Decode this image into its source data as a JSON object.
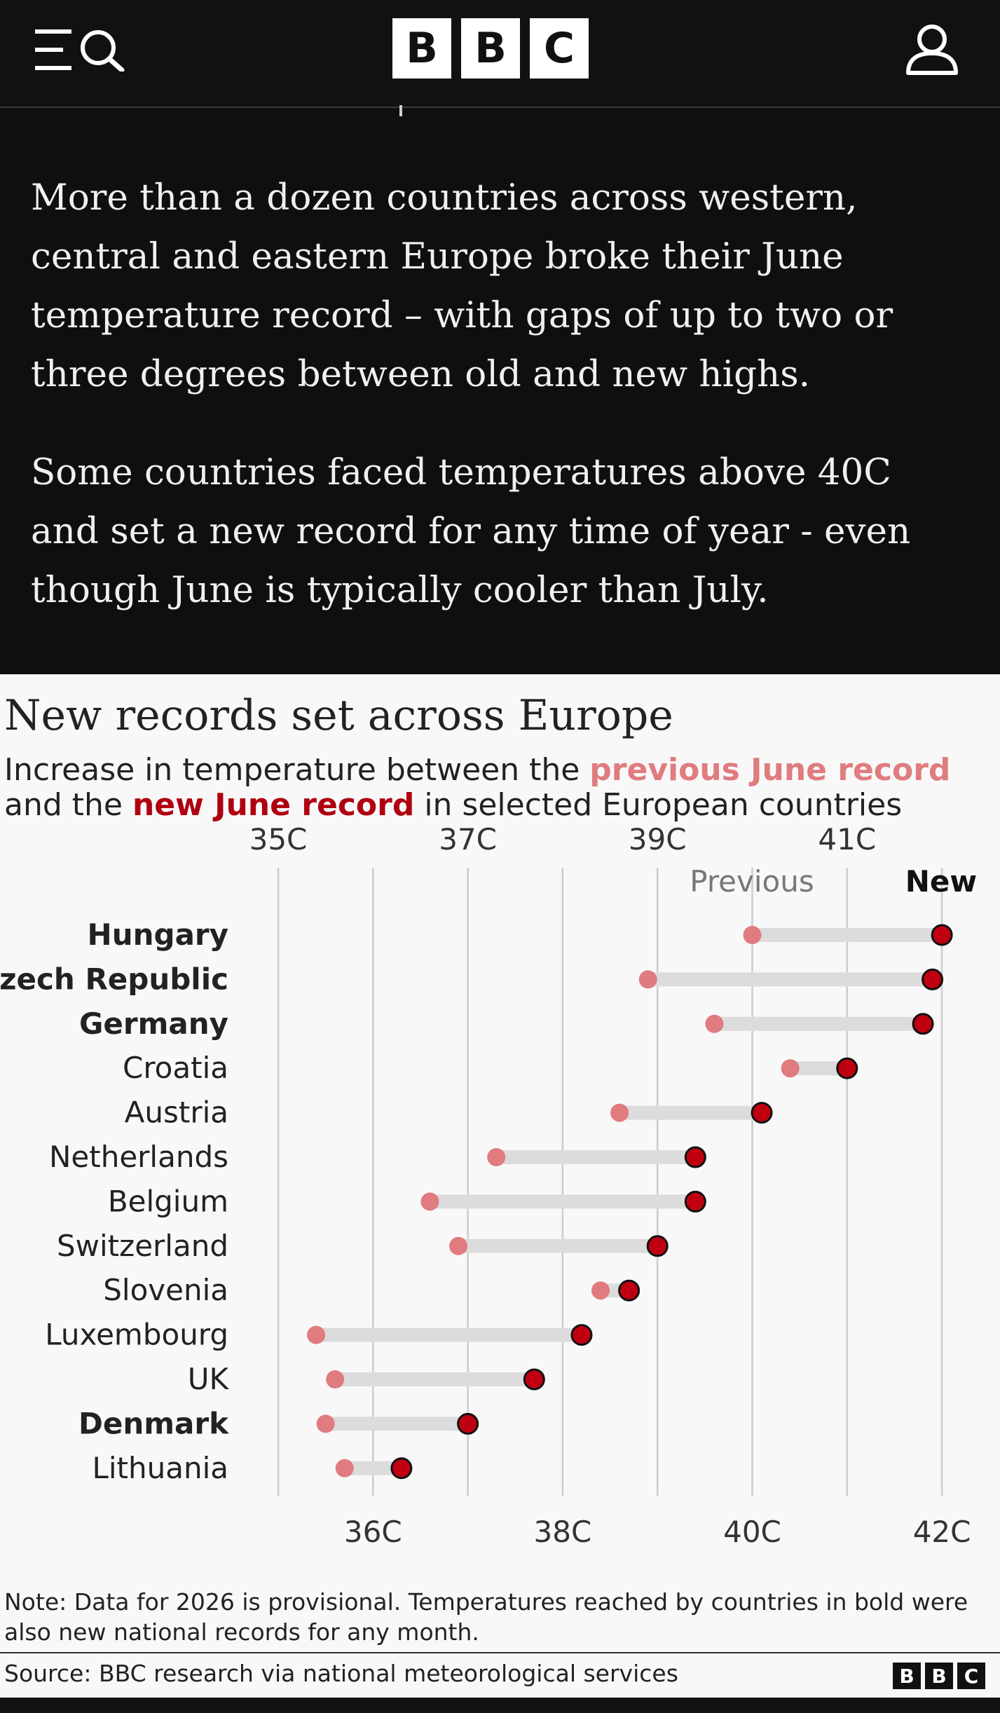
{
  "header": {
    "logo": [
      "B",
      "B",
      "C"
    ],
    "menu_icon": "menu-icon",
    "search_icon": "search-icon",
    "account_icon": "account-icon"
  },
  "article": {
    "paragraphs": [
      "More than a dozen countries across western, central and eastern Europe broke their June temperature record – with gaps of up to two or three degrees between old and new highs.",
      "Some countries faced temperatures above 40C and set a new record for any time of year - even though June is typically cooler than July."
    ]
  },
  "graphic": {
    "title": "New records set across Europe",
    "subtitle_1": "Increase in temperature between the ",
    "subtitle_prev": "previous June record",
    "subtitle_2": " and the ",
    "subtitle_new": "new June record",
    "subtitle_3": " in selected European countries",
    "note": "Note: Data for 2026 is provisional. Temperatures reached by countries in bold were also new national records for any month.",
    "source": "Source: BBC research via national meteorological services",
    "source_logo": [
      "B",
      "B",
      "C"
    ]
  },
  "chart_data": {
    "type": "dumbbell",
    "top_ticks": [
      "35C",
      "37C",
      "39C",
      "41C"
    ],
    "bottom_ticks": [
      "36C",
      "38C",
      "40C",
      "42C"
    ],
    "top_tick_values": [
      35,
      37,
      39,
      41
    ],
    "bottom_tick_values": [
      36,
      38,
      40,
      42
    ],
    "xlim": [
      35,
      42
    ],
    "legend": {
      "previous": "Previous",
      "new": "New"
    },
    "colors": {
      "previous": "#e07b7f",
      "new": "#c00010",
      "bar": "#dcdcdc",
      "grid": "#cccccc"
    },
    "rows": [
      {
        "country": "Hungary",
        "previous": 40.0,
        "new": 42.0,
        "bold": true
      },
      {
        "country": "Czech Republic",
        "previous": 38.9,
        "new": 41.9,
        "bold": true
      },
      {
        "country": "Germany",
        "previous": 39.6,
        "new": 41.8,
        "bold": true
      },
      {
        "country": "Croatia",
        "previous": 40.4,
        "new": 41.0,
        "bold": false
      },
      {
        "country": "Austria",
        "previous": 38.6,
        "new": 40.1,
        "bold": false
      },
      {
        "country": "Netherlands",
        "previous": 37.3,
        "new": 39.4,
        "bold": false
      },
      {
        "country": "Belgium",
        "previous": 36.6,
        "new": 39.4,
        "bold": false
      },
      {
        "country": "Switzerland",
        "previous": 36.9,
        "new": 39.0,
        "bold": false
      },
      {
        "country": "Slovenia",
        "previous": 38.4,
        "new": 38.7,
        "bold": false
      },
      {
        "country": "Luxembourg",
        "previous": 35.4,
        "new": 38.2,
        "bold": false
      },
      {
        "country": "UK",
        "previous": 35.6,
        "new": 37.7,
        "bold": false
      },
      {
        "country": "Denmark",
        "previous": 35.5,
        "new": 37.0,
        "bold": true
      },
      {
        "country": "Lithuania",
        "previous": 35.7,
        "new": 36.3,
        "bold": false
      }
    ]
  }
}
